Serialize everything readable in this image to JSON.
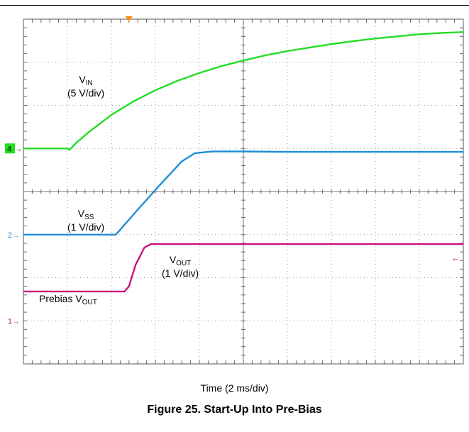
{
  "chart_data": {
    "type": "line",
    "title": "",
    "xlabel": "Time (2 ms/div)",
    "ylabel": "",
    "x_divisions": 10,
    "y_divisions": 8,
    "xlim_div": [
      0,
      10
    ],
    "ylim_div": [
      -4,
      4
    ],
    "grid": true,
    "background": "#ffffff",
    "series": [
      {
        "name": "V_IN",
        "label_main": "V",
        "label_sub": "IN",
        "scale": "(5 V/div)",
        "color": "#22dd22",
        "marker_label": "4",
        "marker_level_div": 1,
        "x": [
          0,
          0.5,
          1.0,
          1.05,
          1.2,
          1.5,
          2.0,
          2.5,
          3.0,
          3.5,
          4.0,
          4.5,
          5.0,
          5.5,
          6.0,
          6.5,
          7.0,
          7.5,
          8.0,
          8.5,
          9.0,
          9.5,
          10.0
        ],
        "y": [
          1.0,
          1.0,
          1.0,
          0.97,
          1.13,
          1.39,
          1.78,
          2.09,
          2.35,
          2.57,
          2.75,
          2.91,
          3.04,
          3.16,
          3.26,
          3.34,
          3.42,
          3.49,
          3.55,
          3.6,
          3.65,
          3.68,
          3.7
        ]
      },
      {
        "name": "V_SS",
        "label_main": "V",
        "label_sub": "SS",
        "scale": "(1 V/div)",
        "color": "#1c8fd6",
        "marker_label": "2",
        "marker_level_div": -1,
        "x": [
          0,
          1.0,
          2.0,
          2.1,
          2.6,
          3.1,
          3.6,
          3.9,
          4.3,
          5.0,
          6.0,
          7.0,
          8.0,
          9.0,
          10.0
        ],
        "y": [
          -1.0,
          -1.0,
          -1.0,
          -1.0,
          -0.42,
          0.15,
          0.7,
          0.89,
          0.93,
          0.93,
          0.92,
          0.92,
          0.92,
          0.92,
          0.92
        ]
      },
      {
        "name": "V_OUT",
        "label_main": "V",
        "label_sub": "OUT",
        "scale": "(1 V/div)",
        "color": "#cc1177",
        "marker_label": "1",
        "marker_level_div": -3,
        "x": [
          0,
          1.0,
          2.0,
          2.3,
          2.4,
          2.55,
          2.75,
          2.9,
          3.0,
          4.0,
          5.0,
          6.0,
          7.0,
          8.0,
          9.0,
          10.0
        ],
        "y": [
          -2.32,
          -2.32,
          -2.32,
          -2.32,
          -2.2,
          -1.7,
          -1.3,
          -1.22,
          -1.22,
          -1.22,
          -1.22,
          -1.22,
          -1.22,
          -1.22,
          -1.22,
          -1.22
        ]
      }
    ],
    "annotations": {
      "prebias_prefix": "Prebias V",
      "prebias_sub": "OUT"
    },
    "trigger_color": "#ff8800"
  },
  "figure": {
    "caption": "Figure 25. Start-Up Into Pre-Bias"
  }
}
